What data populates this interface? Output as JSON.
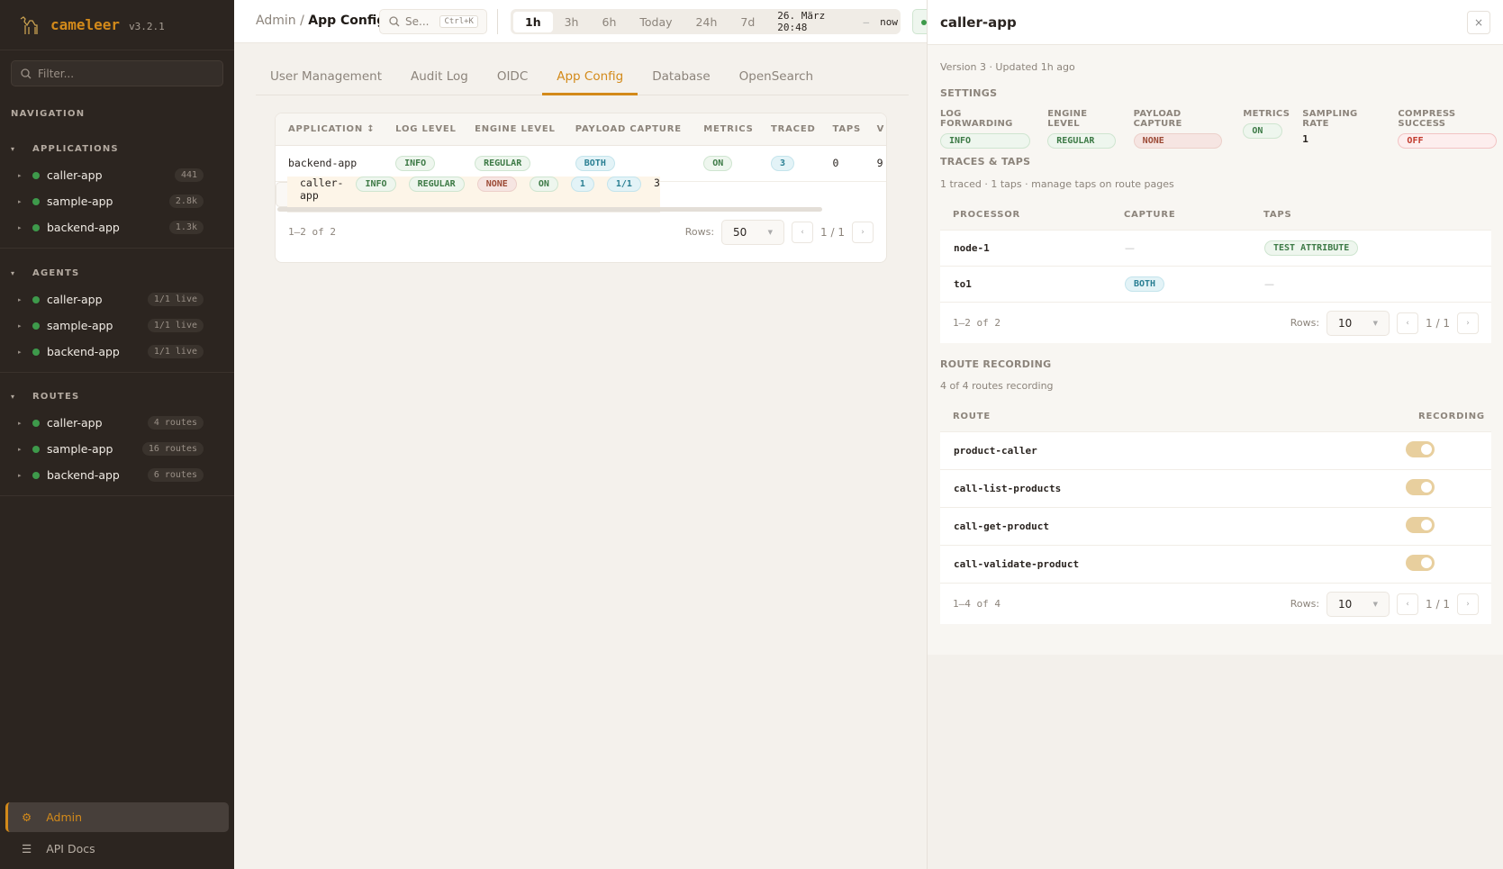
{
  "app": {
    "name": "cameleer",
    "version": "v3.2.1",
    "accent": "#d38a1a"
  },
  "sidebar": {
    "filter_placeholder": "Filter...",
    "nav_label": "NAVIGATION",
    "sections": [
      {
        "title": "APPLICATIONS",
        "items": [
          {
            "label": "caller-app",
            "count": "441"
          },
          {
            "label": "sample-app",
            "count": "2.8k"
          },
          {
            "label": "backend-app",
            "count": "1.3k"
          }
        ]
      },
      {
        "title": "AGENTS",
        "items": [
          {
            "label": "caller-app",
            "count": "1/1 live"
          },
          {
            "label": "sample-app",
            "count": "1/1 live"
          },
          {
            "label": "backend-app",
            "count": "1/1 live"
          }
        ]
      },
      {
        "title": "ROUTES",
        "items": [
          {
            "label": "caller-app",
            "count": "4 routes"
          },
          {
            "label": "sample-app",
            "count": "16 routes"
          },
          {
            "label": "backend-app",
            "count": "6 routes"
          }
        ]
      }
    ],
    "admin": "Admin",
    "api_docs": "API Docs"
  },
  "topbar": {
    "breadcrumb": [
      "Admin",
      "App Config"
    ],
    "search_placeholder": "Se...",
    "search_shortcut": "Ctrl+K",
    "time_ranges": [
      "1h",
      "3h",
      "6h",
      "Today",
      "24h",
      "7d"
    ],
    "active_range": "1h",
    "range_from": "26. März 20:48",
    "range_sep": "—",
    "range_to": "now"
  },
  "tabs": [
    "User Management",
    "Audit Log",
    "OIDC",
    "App Config",
    "Database",
    "OpenSearch"
  ],
  "active_tab": "App Config",
  "table": {
    "columns": [
      "APPLICATION ↕",
      "LOG LEVEL",
      "ENGINE LEVEL",
      "PAYLOAD CAPTURE",
      "METRICS",
      "TRACED",
      "TAPS",
      "V"
    ],
    "rows": [
      {
        "application": "backend-app",
        "log_level": "INFO",
        "engine_level": "REGULAR",
        "payload_capture": "BOTH",
        "metrics": "ON",
        "traced": "3",
        "taps": "0",
        "version": "9"
      },
      {
        "application": "caller-app",
        "log_level": "INFO",
        "engine_level": "REGULAR",
        "payload_capture": "NONE",
        "metrics": "ON",
        "traced": "1",
        "taps": "1/1",
        "version": "3"
      }
    ],
    "count_text": "1–2 of 2",
    "rows_label": "Rows:",
    "rows_value": "50",
    "page": "1 / 1"
  },
  "panel": {
    "title": "caller-app",
    "close": "×",
    "meta": "Version 3 · Updated 1h ago",
    "settings_title": "SETTINGS",
    "settings": [
      {
        "label": "LOG FORWARDING",
        "value": "INFO"
      },
      {
        "label": "ENGINE LEVEL",
        "value": "REGULAR"
      },
      {
        "label": "PAYLOAD CAPTURE",
        "value": "NONE"
      },
      {
        "label": "METRICS",
        "value": "ON"
      },
      {
        "label": "SAMPLING RATE",
        "value": "1"
      },
      {
        "label": "COMPRESS SUCCESS",
        "value": "OFF"
      }
    ],
    "traces_title": "TRACES & TAPS",
    "traces_sub": "1 traced · 1 taps · manage taps on route pages",
    "traces_columns": [
      "PROCESSOR",
      "CAPTURE",
      "TAPS"
    ],
    "traces_rows": [
      {
        "processor": "node-1",
        "capture": "—",
        "taps": "TEST ATTRIBUTE"
      },
      {
        "processor": "to1",
        "capture": "BOTH",
        "taps": "—"
      }
    ],
    "traces_count": "1–2 of 2",
    "traces_rows_value": "10",
    "traces_page": "1 / 1",
    "routes_title": "ROUTE RECORDING",
    "routes_sub": "4 of 4 routes recording",
    "routes_columns": [
      "ROUTE",
      "RECORDING"
    ],
    "routes": [
      {
        "name": "product-caller",
        "recording": true
      },
      {
        "name": "call-list-products",
        "recording": true
      },
      {
        "name": "call-get-product",
        "recording": true
      },
      {
        "name": "call-validate-product",
        "recording": true
      }
    ],
    "routes_count": "1–4 of 4",
    "routes_rows_value": "10",
    "routes_page": "1 / 1",
    "rows_label": "Rows:"
  }
}
